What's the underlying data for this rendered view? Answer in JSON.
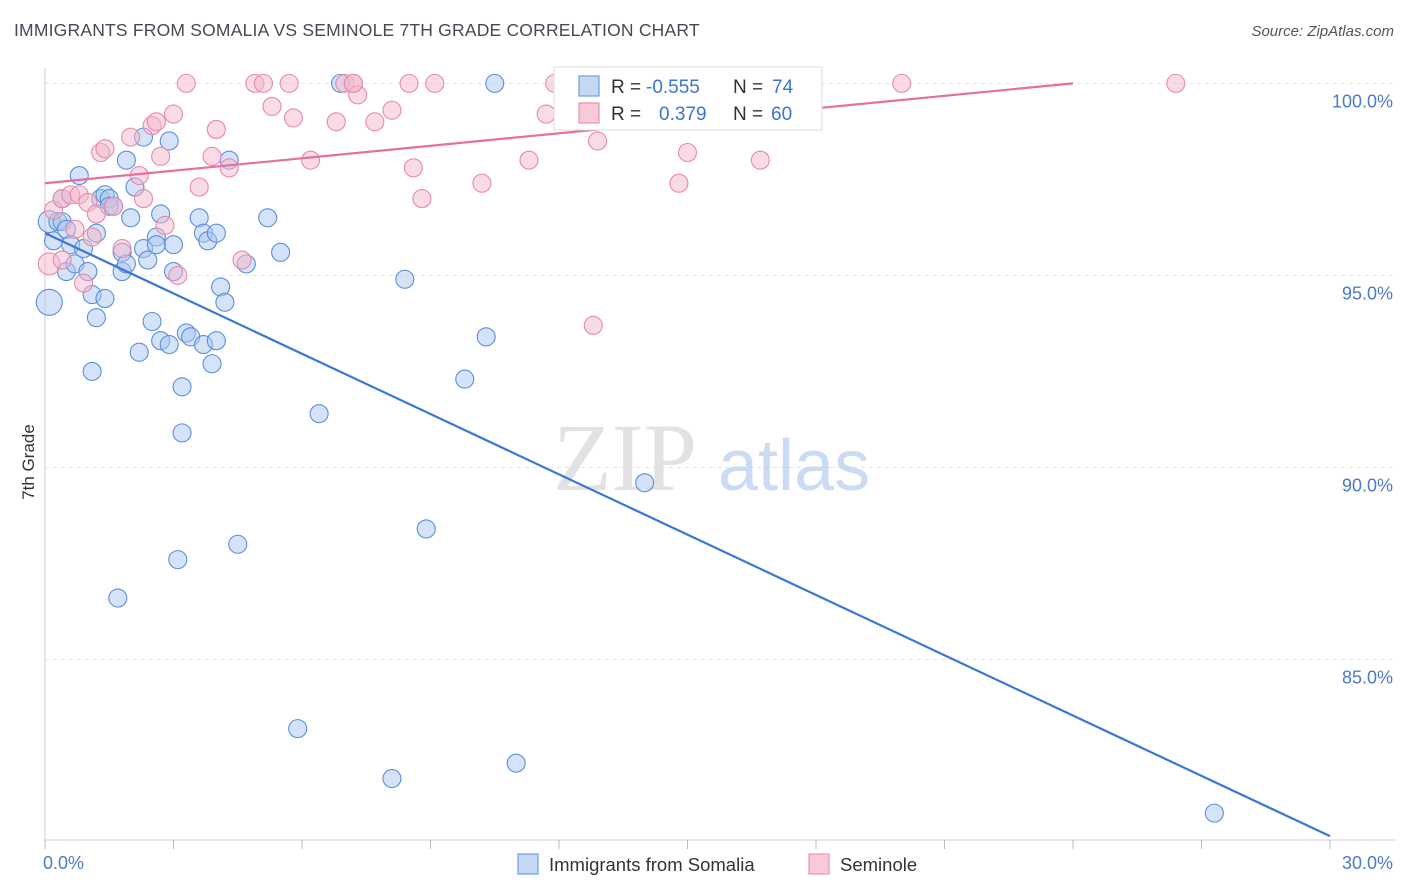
{
  "header": {
    "title": "IMMIGRANTS FROM SOMALIA VS SEMINOLE 7TH GRADE CORRELATION CHART",
    "source": "Source: ZipAtlas.com"
  },
  "watermark": {
    "zip": "ZIP",
    "atlas": "atlas"
  },
  "colors": {
    "blue": "#4a86d8",
    "blue_fill": "#a9c7f0",
    "pink": "#e36a94",
    "pink_fill": "#f4b8cb",
    "axis_text": "#4a7cc9"
  },
  "chart_data": {
    "type": "scatter",
    "title": "IMMIGRANTS FROM SOMALIA VS SEMINOLE 7TH GRADE CORRELATION CHART",
    "xlabel": "",
    "ylabel": "7th Grade",
    "xlim": [
      0,
      30
    ],
    "ylim": [
      80.3,
      100.4
    ],
    "x_tick_labels": [
      "0.0%",
      "30.0%"
    ],
    "y_ticks": [
      100,
      95,
      90,
      85
    ],
    "y_tick_labels": [
      "100.0%",
      "95.0%",
      "90.0%",
      "85.0%"
    ],
    "grid": true,
    "legend_position": "bottom-center",
    "stats": [
      {
        "r_label": "R =",
        "r": "-0.555",
        "n_label": "N =",
        "n": "74"
      },
      {
        "r_label": "R =",
        "r": "0.379",
        "n_label": "N =",
        "n": "60"
      }
    ],
    "series": [
      {
        "name": "Immigrants from Somalia",
        "color": "#4a86d8",
        "trend": [
          [
            0,
            96.1
          ],
          [
            30,
            80.4
          ]
        ],
        "points": [
          [
            0.1,
            94.3
          ],
          [
            0.1,
            96.4
          ],
          [
            0.2,
            95.9
          ],
          [
            0.3,
            96.4
          ],
          [
            0.4,
            97.0
          ],
          [
            0.4,
            96.4
          ],
          [
            0.5,
            95.1
          ],
          [
            0.5,
            96.2
          ],
          [
            0.6,
            95.8
          ],
          [
            0.7,
            95.3
          ],
          [
            0.8,
            97.6
          ],
          [
            0.9,
            95.7
          ],
          [
            1.0,
            95.1
          ],
          [
            1.1,
            94.5
          ],
          [
            1.1,
            92.5
          ],
          [
            1.2,
            96.1
          ],
          [
            1.2,
            93.9
          ],
          [
            1.3,
            97.0
          ],
          [
            1.4,
            94.4
          ],
          [
            1.4,
            97.1
          ],
          [
            1.5,
            97.0
          ],
          [
            1.5,
            96.8
          ],
          [
            1.6,
            96.8
          ],
          [
            1.7,
            86.6
          ],
          [
            1.8,
            95.1
          ],
          [
            1.8,
            95.6
          ],
          [
            1.9,
            98.0
          ],
          [
            1.9,
            95.3
          ],
          [
            2.0,
            96.5
          ],
          [
            2.1,
            97.3
          ],
          [
            2.2,
            93.0
          ],
          [
            2.3,
            98.6
          ],
          [
            2.3,
            95.7
          ],
          [
            2.4,
            95.4
          ],
          [
            2.5,
            93.8
          ],
          [
            2.6,
            96.0
          ],
          [
            2.6,
            95.8
          ],
          [
            2.7,
            93.3
          ],
          [
            2.7,
            96.6
          ],
          [
            2.9,
            93.2
          ],
          [
            2.9,
            98.5
          ],
          [
            3.0,
            95.1
          ],
          [
            3.0,
            95.8
          ],
          [
            3.1,
            87.6
          ],
          [
            3.2,
            90.9
          ],
          [
            3.2,
            92.1
          ],
          [
            3.3,
            93.5
          ],
          [
            3.4,
            93.4
          ],
          [
            3.6,
            96.5
          ],
          [
            3.7,
            96.1
          ],
          [
            3.7,
            93.2
          ],
          [
            3.8,
            95.9
          ],
          [
            3.9,
            92.7
          ],
          [
            4.0,
            96.1
          ],
          [
            4.0,
            93.3
          ],
          [
            4.1,
            94.7
          ],
          [
            4.2,
            94.3
          ],
          [
            4.3,
            98.0
          ],
          [
            4.5,
            88.0
          ],
          [
            4.7,
            95.3
          ],
          [
            5.2,
            96.5
          ],
          [
            5.5,
            95.6
          ],
          [
            5.9,
            83.2
          ],
          [
            6.4,
            91.4
          ],
          [
            6.9,
            100.0
          ],
          [
            8.1,
            81.9
          ],
          [
            8.4,
            94.9
          ],
          [
            8.9,
            88.4
          ],
          [
            9.8,
            92.3
          ],
          [
            10.3,
            93.4
          ],
          [
            10.5,
            100.0
          ],
          [
            11.0,
            82.3
          ],
          [
            14.0,
            89.6
          ],
          [
            27.3,
            81.0
          ]
        ]
      },
      {
        "name": "Seminole",
        "color": "#e36a94",
        "trend": [
          [
            0,
            97.4
          ],
          [
            24,
            100.0
          ]
        ],
        "points": [
          [
            0.1,
            95.3
          ],
          [
            0.2,
            96.7
          ],
          [
            0.4,
            97.0
          ],
          [
            0.4,
            95.4
          ],
          [
            0.6,
            97.1
          ],
          [
            0.7,
            96.2
          ],
          [
            0.8,
            97.1
          ],
          [
            0.9,
            94.8
          ],
          [
            1.0,
            96.9
          ],
          [
            1.1,
            96.0
          ],
          [
            1.2,
            96.6
          ],
          [
            1.3,
            98.2
          ],
          [
            1.4,
            98.3
          ],
          [
            1.6,
            96.8
          ],
          [
            1.8,
            95.7
          ],
          [
            2.0,
            98.6
          ],
          [
            2.2,
            97.6
          ],
          [
            2.3,
            97.0
          ],
          [
            2.5,
            98.9
          ],
          [
            2.6,
            99.0
          ],
          [
            2.7,
            98.1
          ],
          [
            2.8,
            96.3
          ],
          [
            3.0,
            99.2
          ],
          [
            3.1,
            95.0
          ],
          [
            3.3,
            100.0
          ],
          [
            3.6,
            97.3
          ],
          [
            3.9,
            98.1
          ],
          [
            4.0,
            98.8
          ],
          [
            4.3,
            97.8
          ],
          [
            4.6,
            95.4
          ],
          [
            4.9,
            100.0
          ],
          [
            5.1,
            100.0
          ],
          [
            5.3,
            99.4
          ],
          [
            5.7,
            100.0
          ],
          [
            5.8,
            99.1
          ],
          [
            6.2,
            98.0
          ],
          [
            6.8,
            99.0
          ],
          [
            7.0,
            100.0
          ],
          [
            7.2,
            100.0
          ],
          [
            7.3,
            99.7
          ],
          [
            7.7,
            99.0
          ],
          [
            8.1,
            99.3
          ],
          [
            8.5,
            100.0
          ],
          [
            8.6,
            97.8
          ],
          [
            8.8,
            97.0
          ],
          [
            9.1,
            100.0
          ],
          [
            10.2,
            97.4
          ],
          [
            11.3,
            98.0
          ],
          [
            11.7,
            99.2
          ],
          [
            11.9,
            100.0
          ],
          [
            12.8,
            93.7
          ],
          [
            12.9,
            98.5
          ],
          [
            13.2,
            100.0
          ],
          [
            14.3,
            99.5
          ],
          [
            14.8,
            97.4
          ],
          [
            15.0,
            98.2
          ],
          [
            16.7,
            98.0
          ],
          [
            20.0,
            100.0
          ],
          [
            26.4,
            100.0
          ],
          [
            7.2,
            100.0
          ]
        ]
      }
    ]
  }
}
